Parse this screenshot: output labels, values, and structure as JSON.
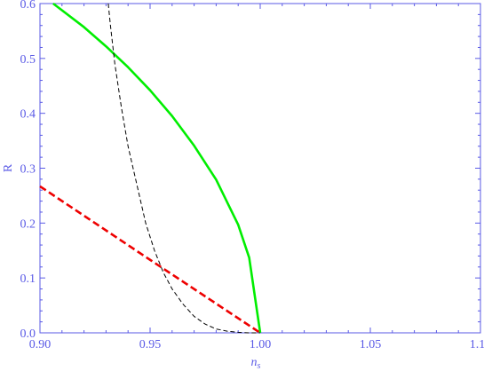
{
  "chart_data": {
    "type": "line",
    "xlabel": "n",
    "xlabel_subscript": "s",
    "ylabel": "R",
    "xlim": [
      0.9,
      1.1
    ],
    "ylim": [
      0.0,
      0.6
    ],
    "x_ticks": [
      "0.90",
      "0.95",
      "1.00",
      "1.05",
      "1.10"
    ],
    "y_ticks": [
      "0.0",
      "0.1",
      "0.2",
      "0.3",
      "0.4",
      "0.5",
      "0.6"
    ],
    "x_tick_values": [
      0.9,
      0.95,
      1.0,
      1.05,
      1.1
    ],
    "y_tick_values": [
      0.0,
      0.1,
      0.2,
      0.3,
      0.4,
      0.5,
      0.6
    ],
    "grid": false,
    "series": [
      {
        "style": "solid",
        "color": "#00ee00",
        "x": [
          0.906,
          0.92,
          0.93,
          0.94,
          0.95,
          0.96,
          0.97,
          0.98,
          0.99,
          0.995,
          1.0
        ],
        "y": [
          0.6,
          0.557,
          0.522,
          0.484,
          0.442,
          0.395,
          0.341,
          0.279,
          0.197,
          0.137,
          0.0
        ]
      },
      {
        "style": "dashed",
        "color": "#ee0000",
        "x": [
          0.9,
          0.95,
          1.0
        ],
        "y": [
          0.267,
          0.133,
          0.0
        ]
      },
      {
        "style": "dashed-thin",
        "color": "#000000",
        "x": [
          0.931,
          0.932,
          0.934,
          0.937,
          0.94,
          0.944,
          0.948,
          0.952,
          0.956,
          0.96,
          0.965,
          0.97,
          0.975,
          0.98,
          0.985,
          0.99,
          0.995,
          1.0
        ],
        "y": [
          0.6,
          0.56,
          0.49,
          0.41,
          0.34,
          0.27,
          0.2,
          0.15,
          0.11,
          0.08,
          0.052,
          0.03,
          0.016,
          0.007,
          0.003,
          0.001,
          0.0,
          0.0
        ]
      }
    ]
  }
}
